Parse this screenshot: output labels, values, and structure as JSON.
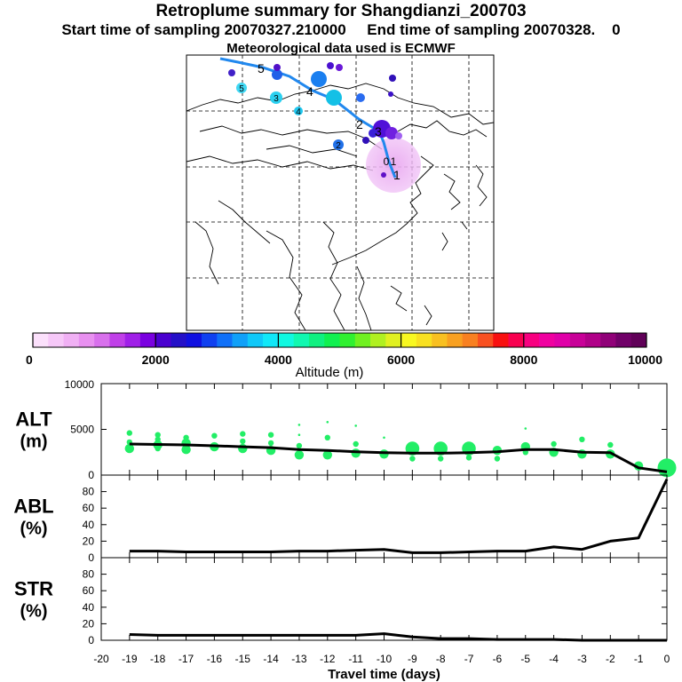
{
  "header": {
    "title": "Retroplume summary for Shangdianzi_200703",
    "subtitle": "Start time of sampling 20070327.210000     End time of sampling 20070328.    0",
    "met_line": "Meteorological data used is ECMWF"
  },
  "map": {
    "track_labels": [
      "1",
      "2",
      "3",
      "4",
      "5"
    ],
    "cluster_labels": [
      "0",
      "1",
      "2",
      "3",
      "4",
      "5"
    ]
  },
  "colorbar": {
    "label": "Altitude (m)",
    "ticks": [
      "0",
      "2000",
      "4000",
      "6000",
      "8000",
      "10000"
    ],
    "range": [
      0,
      10000
    ]
  },
  "chart_data": [
    {
      "type": "line",
      "title": "ALT (m)",
      "ylabel": "ALT\n(m)",
      "ylim": [
        0,
        10000
      ],
      "yticks": [
        "0",
        "5000",
        "10000"
      ],
      "x": [
        -19,
        -18,
        -17,
        -16,
        -15,
        -14,
        -13,
        -12,
        -11,
        -10,
        -9,
        -8,
        -7,
        -6,
        -5,
        -4,
        -3,
        -2,
        -1,
        0
      ],
      "series": [
        {
          "name": "mean altitude",
          "values": [
            3400,
            3350,
            3300,
            3200,
            3100,
            3000,
            2800,
            2700,
            2550,
            2450,
            2400,
            2400,
            2450,
            2550,
            2800,
            2800,
            2500,
            2450,
            800,
            350
          ]
        }
      ],
      "scatter": {
        "name": "altitude clusters",
        "points": [
          [
            -19,
            4600,
            1
          ],
          [
            -19,
            3600,
            1
          ],
          [
            -19,
            2900,
            2
          ],
          [
            -18,
            4400,
            1
          ],
          [
            -18,
            3900,
            1
          ],
          [
            -18,
            3300,
            2
          ],
          [
            -18,
            2900,
            1
          ],
          [
            -17,
            4100,
            1
          ],
          [
            -17,
            3500,
            2
          ],
          [
            -17,
            2800,
            2
          ],
          [
            -16,
            4300,
            1
          ],
          [
            -16,
            3100,
            2
          ],
          [
            -15,
            4500,
            1
          ],
          [
            -15,
            3700,
            1
          ],
          [
            -15,
            2900,
            2
          ],
          [
            -14,
            4400,
            1
          ],
          [
            -14,
            3500,
            1
          ],
          [
            -14,
            2700,
            2
          ],
          [
            -13,
            5500,
            0
          ],
          [
            -13,
            4400,
            0
          ],
          [
            -13,
            3200,
            1
          ],
          [
            -13,
            2200,
            2
          ],
          [
            -12,
            5800,
            0
          ],
          [
            -12,
            4100,
            1
          ],
          [
            -12,
            2200,
            2
          ],
          [
            -11,
            5400,
            0
          ],
          [
            -11,
            3400,
            1
          ],
          [
            -11,
            2400,
            2
          ],
          [
            -10,
            4100,
            0
          ],
          [
            -10,
            2300,
            2
          ],
          [
            -9,
            2900,
            3
          ],
          [
            -9,
            1800,
            1
          ],
          [
            -8,
            2900,
            3
          ],
          [
            -8,
            1800,
            1
          ],
          [
            -7,
            2900,
            3
          ],
          [
            -7,
            1900,
            1
          ],
          [
            -6,
            2700,
            2
          ],
          [
            -6,
            1800,
            1
          ],
          [
            -5,
            5100,
            0
          ],
          [
            -5,
            3100,
            2
          ],
          [
            -5,
            2500,
            1
          ],
          [
            -4,
            3400,
            1
          ],
          [
            -4,
            2500,
            2
          ],
          [
            -3,
            3900,
            1
          ],
          [
            -3,
            2300,
            2
          ],
          [
            -2,
            3300,
            1
          ],
          [
            -2,
            2300,
            2
          ],
          [
            -1,
            1000,
            2
          ],
          [
            0,
            800,
            4
          ]
        ]
      }
    },
    {
      "type": "line",
      "title": "ABL (%)",
      "ylabel": "ABL\n(%)",
      "ylim": [
        0,
        100
      ],
      "yticks": [
        "0",
        "20",
        "40",
        "60",
        "80"
      ],
      "x": [
        -19,
        -18,
        -17,
        -16,
        -15,
        -14,
        -13,
        -12,
        -11,
        -10,
        -9,
        -8,
        -7,
        -6,
        -5,
        -4,
        -3,
        -2,
        -1,
        0
      ],
      "series": [
        {
          "name": "ABL fraction",
          "values": [
            8,
            8,
            7,
            7,
            7,
            7,
            8,
            8,
            9,
            10,
            6,
            6,
            7,
            8,
            8,
            13,
            10,
            20,
            24,
            95
          ]
        }
      ]
    },
    {
      "type": "line",
      "title": "STR (%)",
      "ylabel": "STR\n(%)",
      "ylim": [
        0,
        100
      ],
      "yticks": [
        "0",
        "20",
        "40",
        "60",
        "80"
      ],
      "xlabel": "Travel time (days)",
      "xlim": [
        -20,
        0
      ],
      "xticks": [
        "-20",
        "-19",
        "-18",
        "-17",
        "-16",
        "-15",
        "-14",
        "-13",
        "-12",
        "-11",
        "-10",
        "-9",
        "-8",
        "-7",
        "-6",
        "-5",
        "-4",
        "-3",
        "-2",
        "-1",
        "0"
      ],
      "x": [
        -19,
        -18,
        -17,
        -16,
        -15,
        -14,
        -13,
        -12,
        -11,
        -10,
        -9,
        -8,
        -7,
        -6,
        -5,
        -4,
        -3,
        -2,
        -1,
        0
      ],
      "series": [
        {
          "name": "stratospheric fraction",
          "values": [
            7,
            6,
            6,
            6,
            6,
            6,
            6,
            6,
            6,
            8,
            4,
            2,
            2,
            1,
            1,
            1,
            0,
            0,
            0,
            0
          ]
        }
      ]
    }
  ]
}
